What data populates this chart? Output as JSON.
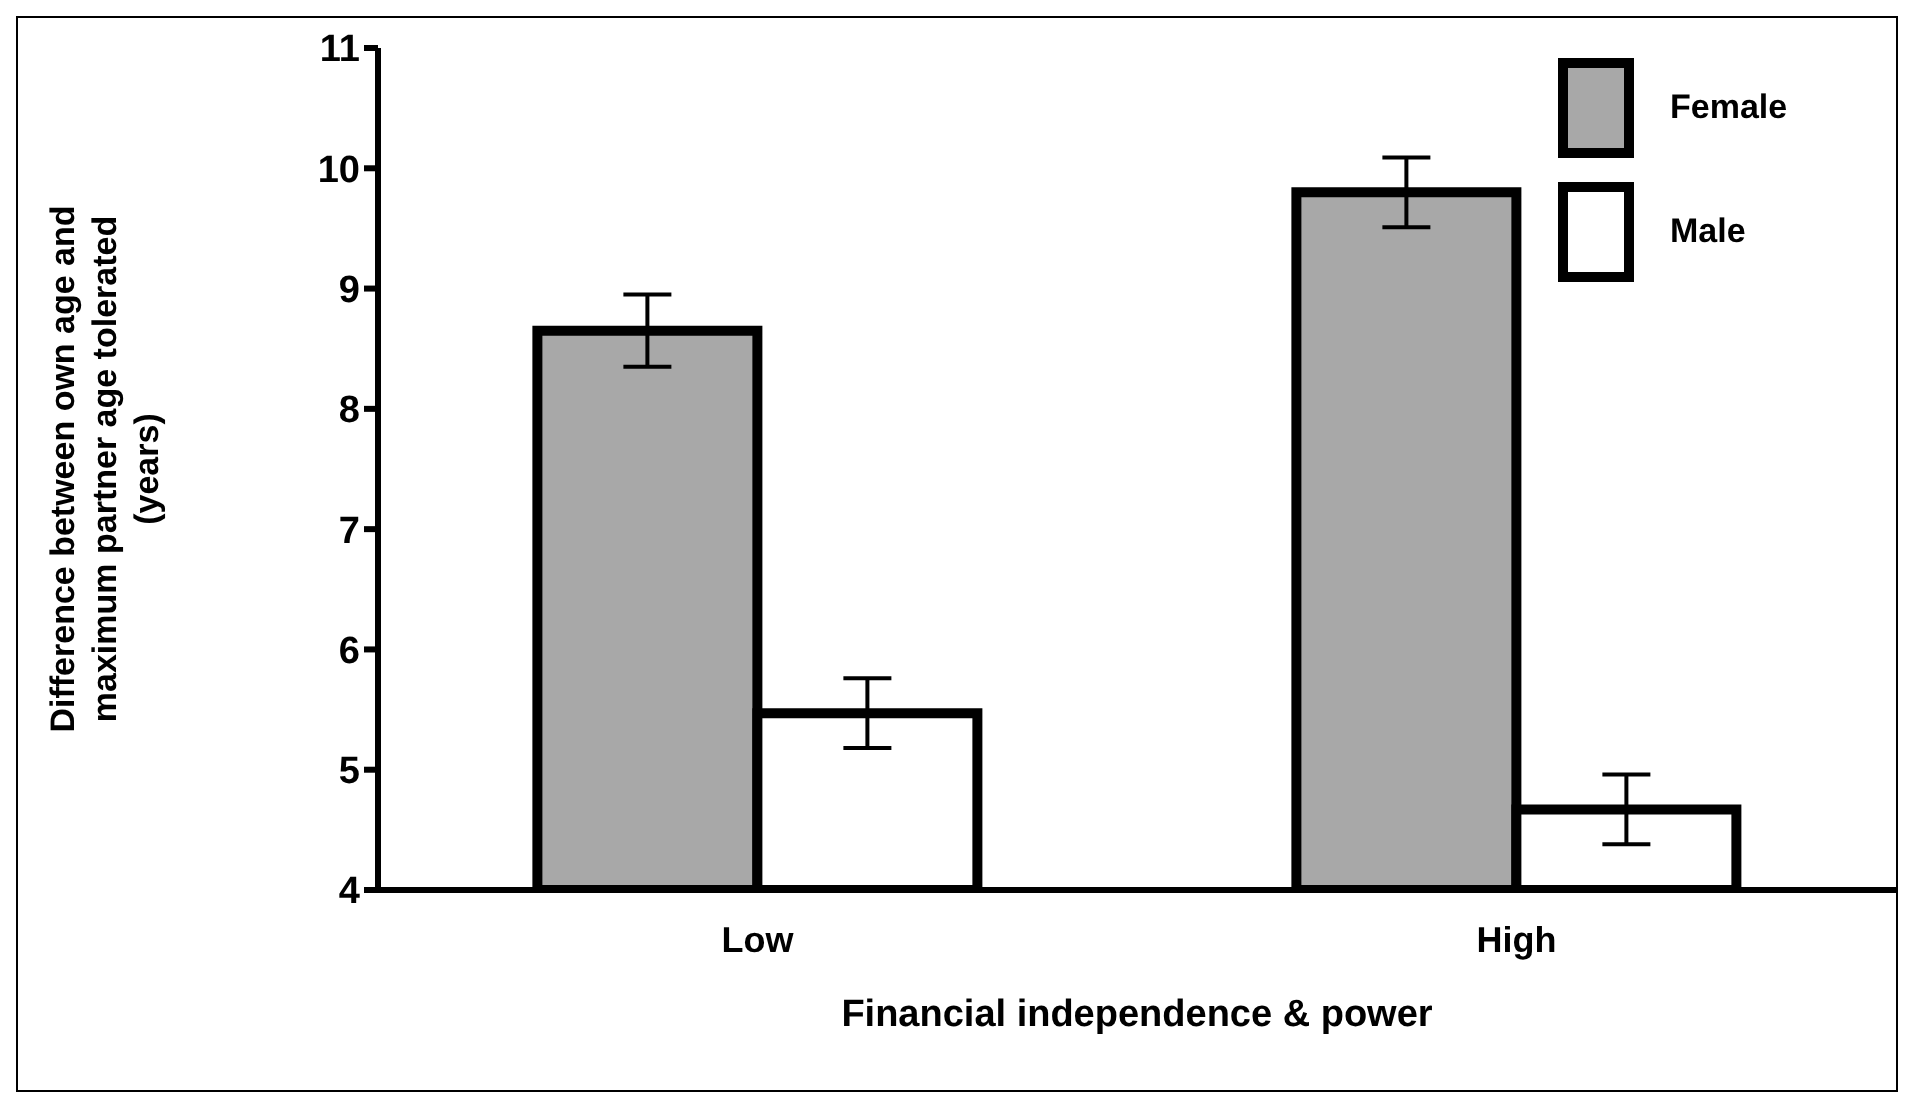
{
  "chart_data": {
    "type": "bar",
    "xlabel": "Financial independence & power",
    "ylabel": "Difference between own age and\nmaximum partner age tolerated\n(years)",
    "categories": [
      "Low",
      "High"
    ],
    "series": [
      {
        "name": "Female",
        "color": "#a8a8a8",
        "values": [
          8.65,
          9.8
        ],
        "errors": [
          0.3,
          0.29
        ]
      },
      {
        "name": "Male",
        "color": "#ffffff",
        "values": [
          5.47,
          4.67
        ],
        "errors": [
          0.29,
          0.29
        ]
      }
    ],
    "ylim": [
      4,
      11
    ],
    "yticks": [
      4,
      5,
      6,
      7,
      8,
      9,
      10,
      11
    ],
    "grid": false,
    "legend": "top right"
  }
}
